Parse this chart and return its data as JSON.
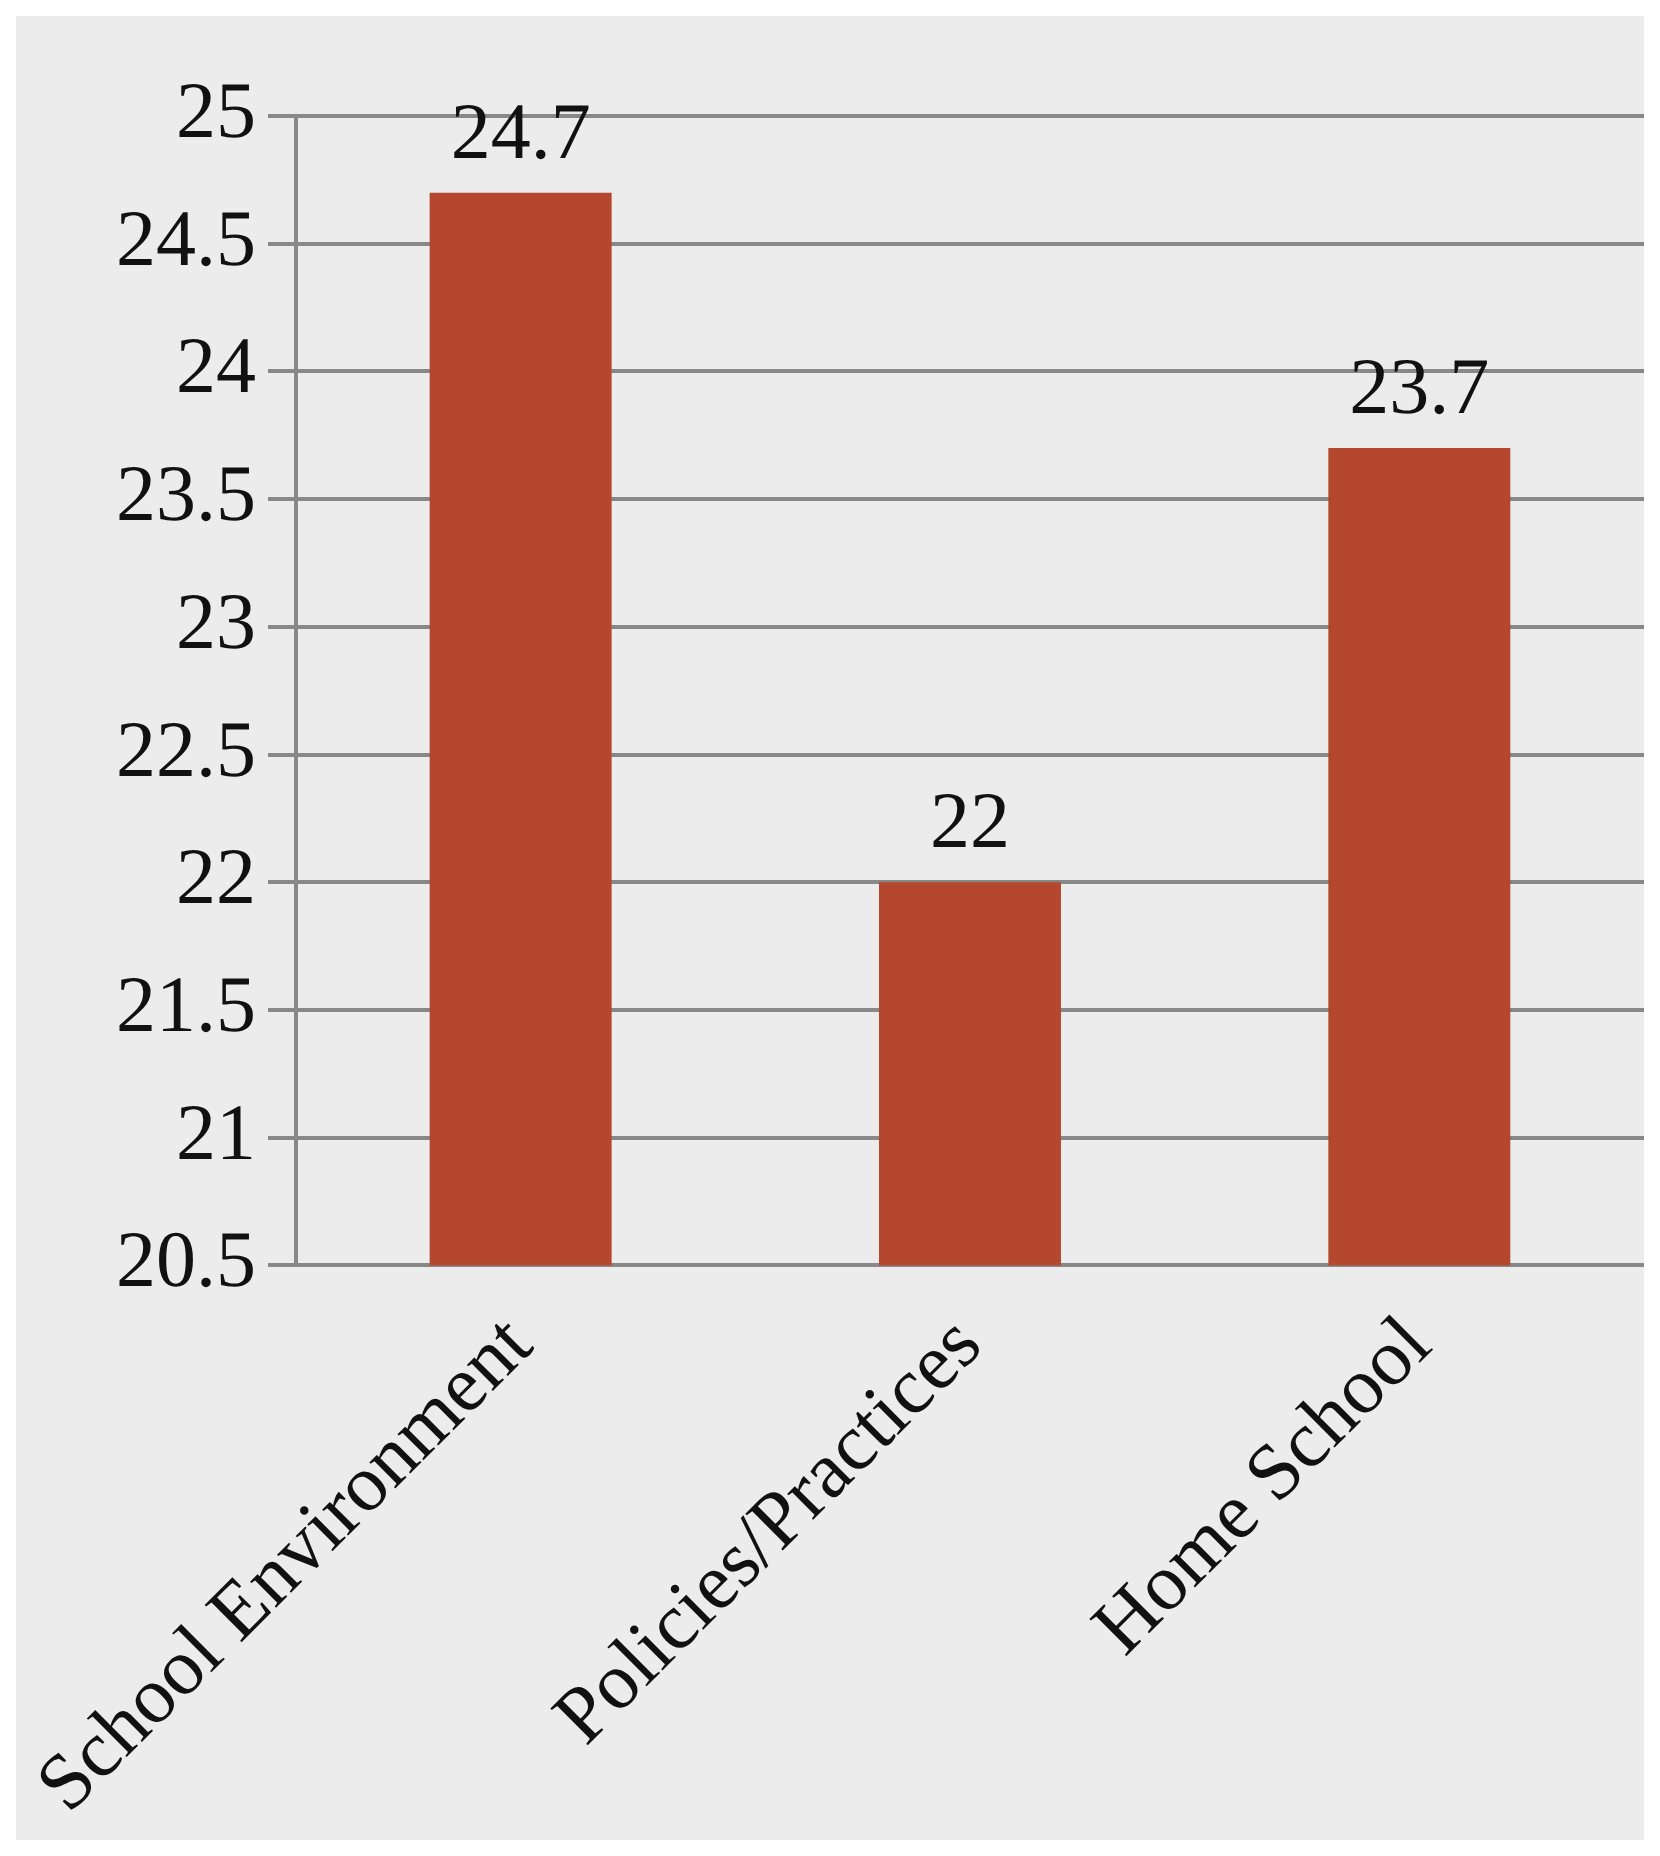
{
  "chart_data": {
    "type": "bar",
    "categories": [
      "School Environment",
      "Policies/Practices",
      "Home School"
    ],
    "values": [
      24.7,
      22,
      23.7
    ],
    "color": "#b5472f",
    "ylim": [
      20.5,
      25
    ],
    "yticks": [
      20.5,
      21,
      21.5,
      22,
      22.5,
      23,
      23.5,
      24,
      24.5,
      25
    ],
    "grid": "y",
    "data_labels": true
  }
}
